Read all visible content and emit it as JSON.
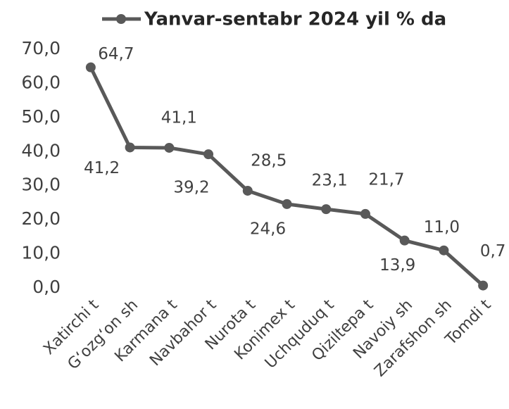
{
  "chart_data": {
    "type": "line",
    "categories": [
      "Xatirchi t",
      "G‘ozg‘on sh",
      "Karmana t",
      "Navbahor t",
      "Nurota t",
      "Konimex t",
      "Uchquduq t",
      "Qiziltepa t",
      "Navoiy sh",
      "Zarafshon sh",
      "Tomdi t"
    ],
    "series": [
      {
        "name": "Yanvar-sentabr 2024 yil % da",
        "color": "#595959",
        "values": [
          64.7,
          41.2,
          41.1,
          39.2,
          28.5,
          24.6,
          23.1,
          21.7,
          13.9,
          11.0,
          0.7
        ],
        "value_labels": [
          "64,7",
          "41,2",
          "41,1",
          "39,2",
          "28,5",
          "24,6",
          "23,1",
          "21,7",
          "13,9",
          "11,0",
          "0,7"
        ]
      }
    ],
    "ylim": [
      0,
      70
    ],
    "yticks": [
      {
        "value": 0,
        "label": "0,0"
      },
      {
        "value": 10,
        "label": "10,0"
      },
      {
        "value": 20,
        "label": "20,0"
      },
      {
        "value": 30,
        "label": "30,0"
      },
      {
        "value": 40,
        "label": "40,0"
      },
      {
        "value": 50,
        "label": "50,0"
      },
      {
        "value": 60,
        "label": "60,0"
      },
      {
        "value": 70,
        "label": "70,0"
      }
    ],
    "legend": "top",
    "grid": false
  }
}
